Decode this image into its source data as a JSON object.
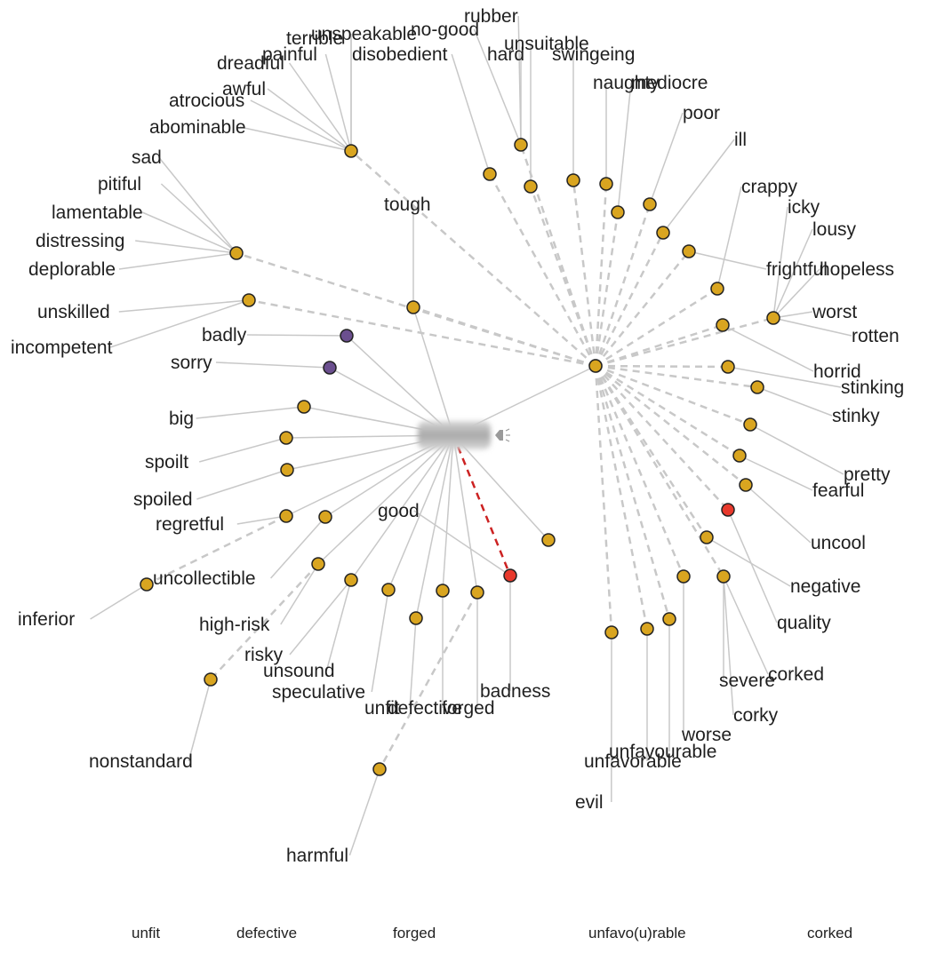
{
  "colors": {
    "synonym": "#d9a520",
    "antonym_root": "#e8392c",
    "other": "#6b4f8f"
  },
  "center": {
    "name": "bad",
    "icon": "speaker-icon"
  },
  "hubs": [
    "h_main",
    "h_abom",
    "h_sad",
    "h_unsk",
    "h_hope",
    "h_tough"
  ],
  "nodes": [
    {
      "id": "h_main",
      "color": "synonym"
    },
    {
      "id": "h_abom",
      "color": "synonym"
    },
    {
      "id": "h_sad",
      "color": "synonym"
    },
    {
      "id": "h_unsk",
      "color": "synonym"
    },
    {
      "id": "h_hope",
      "color": "synonym"
    },
    {
      "id": "h_tough",
      "color": "synonym"
    },
    {
      "id": "n_badly",
      "color": "other"
    },
    {
      "id": "n_sorry",
      "color": "other"
    },
    {
      "id": "n_big",
      "color": "synonym"
    },
    {
      "id": "n_spoilt",
      "color": "synonym"
    },
    {
      "id": "n_spoiled",
      "color": "synonym"
    },
    {
      "id": "n_regretful",
      "color": "synonym"
    },
    {
      "id": "n_unc",
      "color": "synonym"
    },
    {
      "id": "n_inferior",
      "color": "synonym"
    },
    {
      "id": "n_hr",
      "color": "synonym"
    },
    {
      "id": "n_risky",
      "color": "synonym"
    },
    {
      "id": "n_nonstd",
      "color": "synonym"
    },
    {
      "id": "n_spec",
      "color": "synonym"
    },
    {
      "id": "n_unfit",
      "color": "synonym"
    },
    {
      "id": "n_def",
      "color": "synonym"
    },
    {
      "id": "n_forged",
      "color": "synonym"
    },
    {
      "id": "n_good",
      "color": "antonym_root"
    },
    {
      "id": "n_harmful",
      "color": "synonym"
    },
    {
      "id": "n_m_lo",
      "color": "synonym"
    },
    {
      "id": "n_nogood",
      "color": "synonym"
    },
    {
      "id": "n_disob",
      "color": "synonym"
    },
    {
      "id": "n_unsuit",
      "color": "synonym"
    },
    {
      "id": "n_swing",
      "color": "synonym"
    },
    {
      "id": "n_naughty",
      "color": "synonym"
    },
    {
      "id": "n_medio",
      "color": "synonym"
    },
    {
      "id": "n_poor",
      "color": "synonym"
    },
    {
      "id": "n_ill",
      "color": "synonym"
    },
    {
      "id": "n_fright",
      "color": "synonym"
    },
    {
      "id": "n_crappy",
      "color": "synonym"
    },
    {
      "id": "n_horrid",
      "color": "synonym"
    },
    {
      "id": "n_stink",
      "color": "synonym"
    },
    {
      "id": "n_stinky",
      "color": "synonym"
    },
    {
      "id": "n_pretty",
      "color": "synonym"
    },
    {
      "id": "n_fearful",
      "color": "synonym"
    },
    {
      "id": "n_quality",
      "color": "antonym_root"
    },
    {
      "id": "n_uncool",
      "color": "synonym"
    },
    {
      "id": "n_negative",
      "color": "synonym"
    },
    {
      "id": "n_severe",
      "color": "synonym"
    },
    {
      "id": "n_evil",
      "color": "synonym"
    },
    {
      "id": "n_unfav1",
      "color": "synonym"
    },
    {
      "id": "n_unfav2",
      "color": "synonym"
    },
    {
      "id": "n_worse",
      "color": "synonym"
    }
  ],
  "edges": [
    {
      "a": "center",
      "b": "h_main",
      "s": "solid"
    },
    {
      "a": "center",
      "b": "h_tough",
      "s": "solid"
    },
    {
      "a": "center",
      "b": "n_badly",
      "s": "solid"
    },
    {
      "a": "center",
      "b": "n_sorry",
      "s": "solid"
    },
    {
      "a": "center",
      "b": "n_big",
      "s": "solid"
    },
    {
      "a": "center",
      "b": "n_spoilt",
      "s": "solid"
    },
    {
      "a": "center",
      "b": "n_spoiled",
      "s": "solid"
    },
    {
      "a": "center",
      "b": "n_regretful",
      "s": "solid"
    },
    {
      "a": "center",
      "b": "n_unc",
      "s": "solid"
    },
    {
      "a": "center",
      "b": "n_hr",
      "s": "solid"
    },
    {
      "a": "center",
      "b": "n_risky",
      "s": "solid"
    },
    {
      "a": "center",
      "b": "n_spec",
      "s": "solid"
    },
    {
      "a": "center",
      "b": "n_unfit",
      "s": "solid"
    },
    {
      "a": "center",
      "b": "n_def",
      "s": "solid"
    },
    {
      "a": "center",
      "b": "n_forged",
      "s": "solid"
    },
    {
      "a": "center",
      "b": "n_m_lo",
      "s": "solid"
    },
    {
      "a": "center",
      "b": "n_good",
      "s": "red"
    },
    {
      "a": "h_main",
      "b": "h_abom",
      "s": "dash"
    },
    {
      "a": "h_main",
      "b": "h_sad",
      "s": "dash"
    },
    {
      "a": "h_main",
      "b": "h_unsk",
      "s": "dash"
    },
    {
      "a": "h_main",
      "b": "h_hope",
      "s": "dash"
    },
    {
      "a": "h_main",
      "b": "n_nogood",
      "s": "dash"
    },
    {
      "a": "h_main",
      "b": "n_disob",
      "s": "dash"
    },
    {
      "a": "h_main",
      "b": "h_tough",
      "s": "dash"
    },
    {
      "a": "h_main",
      "b": "n_unsuit",
      "s": "dash"
    },
    {
      "a": "h_main",
      "b": "n_swing",
      "s": "dash"
    },
    {
      "a": "h_main",
      "b": "n_naughty",
      "s": "dash"
    },
    {
      "a": "h_main",
      "b": "n_medio",
      "s": "dash"
    },
    {
      "a": "h_main",
      "b": "n_poor",
      "s": "dash"
    },
    {
      "a": "h_main",
      "b": "n_ill",
      "s": "dash"
    },
    {
      "a": "h_main",
      "b": "n_fright",
      "s": "dash"
    },
    {
      "a": "h_main",
      "b": "n_crappy",
      "s": "dash"
    },
    {
      "a": "h_main",
      "b": "n_horrid",
      "s": "dash"
    },
    {
      "a": "h_main",
      "b": "n_stink",
      "s": "dash"
    },
    {
      "a": "h_main",
      "b": "n_stinky",
      "s": "dash"
    },
    {
      "a": "h_main",
      "b": "n_pretty",
      "s": "dash"
    },
    {
      "a": "h_main",
      "b": "n_fearful",
      "s": "dash"
    },
    {
      "a": "h_main",
      "b": "n_uncool",
      "s": "dash"
    },
    {
      "a": "h_main",
      "b": "n_negative",
      "s": "dash"
    },
    {
      "a": "h_main",
      "b": "n_severe",
      "s": "dash"
    },
    {
      "a": "h_main",
      "b": "n_evil",
      "s": "dash"
    },
    {
      "a": "h_main",
      "b": "n_unfav1",
      "s": "dash"
    },
    {
      "a": "h_main",
      "b": "n_unfav2",
      "s": "dash"
    },
    {
      "a": "h_main",
      "b": "n_worse",
      "s": "dash"
    },
    {
      "a": "h_main",
      "b": "n_quality",
      "s": "dash"
    },
    {
      "a": "n_regretful",
      "b": "n_inferior",
      "s": "dash"
    },
    {
      "a": "n_hr",
      "b": "n_nonstd",
      "s": "dash"
    },
    {
      "a": "n_forged",
      "b": "n_harmful",
      "s": "dash"
    },
    {
      "a": "center",
      "b": "n_quality",
      "s": "none"
    }
  ],
  "labels": [
    {
      "node": "h_abom",
      "text": "unspeakable"
    },
    {
      "node": "h_abom",
      "text": "terrible"
    },
    {
      "node": "h_abom",
      "text": "painful"
    },
    {
      "node": "h_abom",
      "text": "dreadful"
    },
    {
      "node": "h_abom",
      "text": "awful"
    },
    {
      "node": "h_abom",
      "text": "atrocious"
    },
    {
      "node": "h_abom",
      "text": "abominable"
    },
    {
      "node": "h_sad",
      "text": "sad"
    },
    {
      "node": "h_sad",
      "text": "pitiful"
    },
    {
      "node": "h_sad",
      "text": "lamentable"
    },
    {
      "node": "h_sad",
      "text": "distressing"
    },
    {
      "node": "h_sad",
      "text": "deplorable"
    },
    {
      "node": "h_unsk",
      "text": "unskilled"
    },
    {
      "node": "h_unsk",
      "text": "incompetent"
    },
    {
      "node": "n_badly",
      "text": "badly"
    },
    {
      "node": "n_sorry",
      "text": "sorry"
    },
    {
      "node": "n_big",
      "text": "big"
    },
    {
      "node": "n_spoilt",
      "text": "spoilt"
    },
    {
      "node": "n_spoiled",
      "text": "spoiled"
    },
    {
      "node": "n_regretful",
      "text": "regretful"
    },
    {
      "node": "n_unc",
      "text": "uncollectible"
    },
    {
      "node": "n_inferior",
      "text": "inferior"
    },
    {
      "node": "n_hr",
      "text": "high-risk"
    },
    {
      "node": "n_risky",
      "text": "risky"
    },
    {
      "node": "n_risky",
      "text": "unsound"
    },
    {
      "node": "n_nonstd",
      "text": "nonstandard"
    },
    {
      "node": "n_spec",
      "text": "speculative"
    },
    {
      "node": "n_unfit",
      "text": "unfit"
    },
    {
      "node": "n_def",
      "text": "defective"
    },
    {
      "node": "n_forged",
      "text": "forged"
    },
    {
      "node": "n_good",
      "text": "good"
    },
    {
      "node": "n_good",
      "text": "badness"
    },
    {
      "node": "n_harmful",
      "text": "harmful"
    },
    {
      "node": "h_tough",
      "text": "tough"
    },
    {
      "node": "n_nogood",
      "text": "rubber"
    },
    {
      "node": "n_nogood",
      "text": "no-good"
    },
    {
      "node": "n_nogood",
      "text": "hard"
    },
    {
      "node": "n_disob",
      "text": "disobedient"
    },
    {
      "node": "n_unsuit",
      "text": "unsuitable"
    },
    {
      "node": "n_swing",
      "text": "swingeing"
    },
    {
      "node": "n_naughty",
      "text": "naughty"
    },
    {
      "node": "n_medio",
      "text": "mediocre"
    },
    {
      "node": "n_poor",
      "text": "poor"
    },
    {
      "node": "n_ill",
      "text": "ill"
    },
    {
      "node": "n_crappy",
      "text": "crappy"
    },
    {
      "node": "h_hope",
      "text": "icky"
    },
    {
      "node": "h_hope",
      "text": "lousy"
    },
    {
      "node": "n_fright",
      "text": "frightful"
    },
    {
      "node": "h_hope",
      "text": "hopeless"
    },
    {
      "node": "h_hope",
      "text": "worst"
    },
    {
      "node": "h_hope",
      "text": "rotten"
    },
    {
      "node": "n_horrid",
      "text": "horrid"
    },
    {
      "node": "n_stink",
      "text": "stinking"
    },
    {
      "node": "n_stinky",
      "text": "stinky"
    },
    {
      "node": "n_pretty",
      "text": "pretty"
    },
    {
      "node": "n_fearful",
      "text": "fearful"
    },
    {
      "node": "n_uncool",
      "text": "uncool"
    },
    {
      "node": "n_negative",
      "text": "negative"
    },
    {
      "node": "n_quality",
      "text": "quality"
    },
    {
      "node": "n_severe",
      "text": "corked"
    },
    {
      "node": "n_severe",
      "text": "severe"
    },
    {
      "node": "n_severe",
      "text": "corky"
    },
    {
      "node": "n_worse",
      "text": "worse"
    },
    {
      "node": "n_unfav2",
      "text": "unfavourable"
    },
    {
      "node": "n_unfav1",
      "text": "unfavorable"
    },
    {
      "node": "n_evil",
      "text": "evil"
    }
  ],
  "legend": [
    "unfit",
    "defective",
    "forged",
    "unfavo(u)rable",
    "corked"
  ]
}
